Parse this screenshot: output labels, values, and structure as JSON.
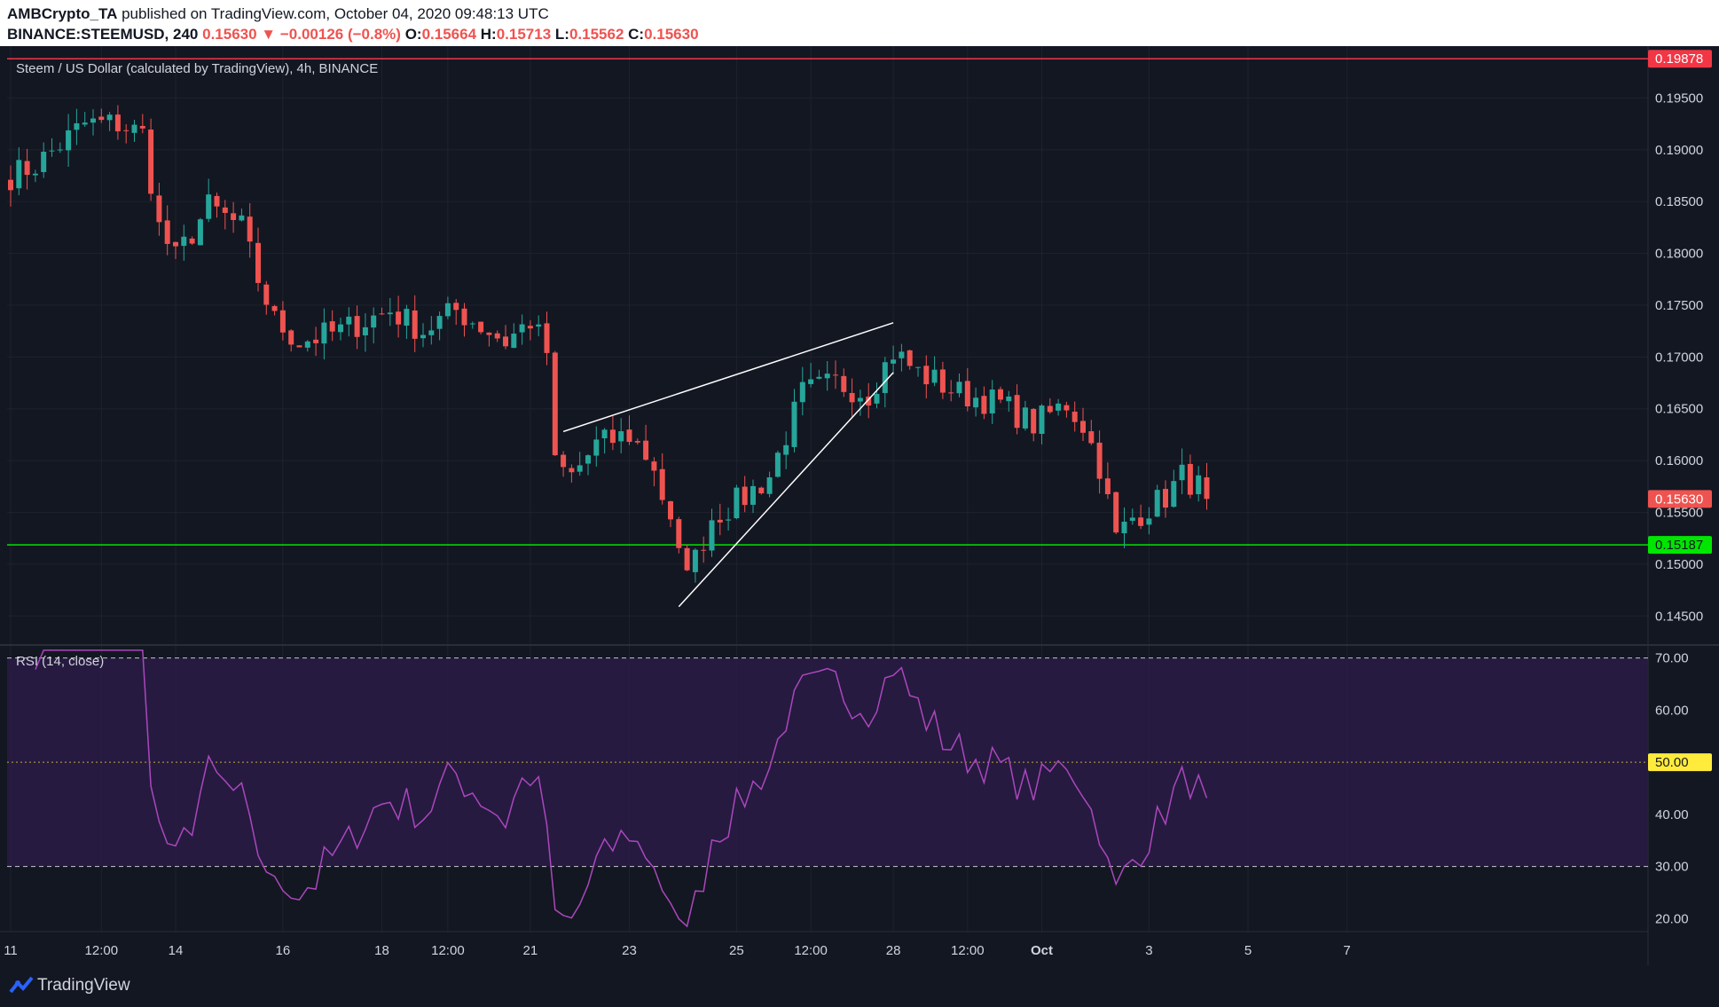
{
  "header": {
    "publisher": "AMBCrypto_TA",
    "published_text": "published on TradingView.com, October 04, 2020 09:48:13 UTC",
    "symbol": "BINANCE:STEEMUSD, 240",
    "last": "0.15630",
    "change": "▼ −0.00126 (−0.8%)",
    "o_label": "O:",
    "o_value": "0.15664",
    "h_label": "H:",
    "h_value": "0.15713",
    "l_label": "L:",
    "l_value": "0.15562",
    "c_label": "C:",
    "c_value": "0.15630"
  },
  "footer": {
    "brand": "TradingView"
  },
  "colors": {
    "up": "#26a69a",
    "down": "#ef5350",
    "bg": "#131722",
    "grid": "#1e222d",
    "rsi_line": "#ab47bc",
    "rsi_band": "#2a1b45",
    "resistance": "#f23645",
    "support": "#00e600",
    "mid": "#ffeb3b",
    "trendline": "#ffffff"
  },
  "chart_data": {
    "type": "candlestick",
    "title": "Steem / US Dollar (calculated by TradingView), 4h, BINANCE",
    "price_axis": {
      "ticks": [
        0.195,
        0.19,
        0.185,
        0.18,
        0.175,
        0.17,
        0.165,
        0.16,
        0.155,
        0.15,
        0.145
      ],
      "tick_labels": [
        "0.19500",
        "0.19000",
        "0.18500",
        "0.18000",
        "0.17500",
        "0.17000",
        "0.16500",
        "0.16000",
        "0.15500",
        "0.15000",
        "0.14500"
      ],
      "range": [
        0.1422,
        0.2
      ]
    },
    "x_axis": {
      "bar_count": 166,
      "ticks": [
        {
          "bar": 0,
          "label": "11"
        },
        {
          "bar": 11,
          "label": "12:00"
        },
        {
          "bar": 20,
          "label": "14"
        },
        {
          "bar": 33,
          "label": "16"
        },
        {
          "bar": 45,
          "label": "18"
        },
        {
          "bar": 53,
          "label": "12:00"
        },
        {
          "bar": 63,
          "label": "21"
        },
        {
          "bar": 75,
          "label": "23"
        },
        {
          "bar": 88,
          "label": "25"
        },
        {
          "bar": 97,
          "label": "12:00"
        },
        {
          "bar": 107,
          "label": "28"
        },
        {
          "bar": 116,
          "label": "12:00"
        },
        {
          "bar": 125,
          "label": "Oct"
        },
        {
          "bar": 138,
          "label": "3"
        },
        {
          "bar": 150,
          "label": "5"
        },
        {
          "bar": 162,
          "label": "7"
        }
      ]
    },
    "levels": [
      {
        "name": "resistance",
        "value": 0.19878,
        "label": "0.19878"
      },
      {
        "name": "support",
        "value": 0.15187,
        "label": "0.15187"
      },
      {
        "name": "last-price",
        "value": 0.1563,
        "label": "0.15630"
      }
    ],
    "trendlines": [
      {
        "name": "upper-wedge-line",
        "from": [
          67,
          0.1628
        ],
        "to": [
          107,
          0.1733
        ]
      },
      {
        "name": "lower-wedge-line",
        "from": [
          81,
          0.1459
        ],
        "to": [
          107,
          0.1685
        ]
      }
    ],
    "anchors": [
      [
        0,
        0.1875
      ],
      [
        3,
        0.1885
      ],
      [
        6,
        0.1905
      ],
      [
        9,
        0.1925
      ],
      [
        13,
        0.1925
      ],
      [
        16,
        0.1915
      ],
      [
        18,
        0.1825
      ],
      [
        20,
        0.1795
      ],
      [
        24,
        0.1845
      ],
      [
        28,
        0.1825
      ],
      [
        30,
        0.1775
      ],
      [
        32,
        0.1735
      ],
      [
        35,
        0.1715
      ],
      [
        40,
        0.1725
      ],
      [
        46,
        0.1745
      ],
      [
        50,
        0.1725
      ],
      [
        54,
        0.1745
      ],
      [
        60,
        0.1715
      ],
      [
        63,
        0.1735
      ],
      [
        65,
        0.1705
      ],
      [
        66,
        0.1595
      ],
      [
        68,
        0.1585
      ],
      [
        71,
        0.1615
      ],
      [
        75,
        0.1625
      ],
      [
        78,
        0.1595
      ],
      [
        81,
        0.1505
      ],
      [
        83,
        0.1505
      ],
      [
        85,
        0.1545
      ],
      [
        89,
        0.1565
      ],
      [
        92,
        0.1585
      ],
      [
        94,
        0.1625
      ],
      [
        96,
        0.1665
      ],
      [
        100,
        0.1675
      ],
      [
        104,
        0.1665
      ],
      [
        107,
        0.1705
      ],
      [
        110,
        0.1685
      ],
      [
        115,
        0.1665
      ],
      [
        120,
        0.1655
      ],
      [
        124,
        0.1635
      ],
      [
        128,
        0.1655
      ],
      [
        130,
        0.1635
      ],
      [
        132,
        0.1595
      ],
      [
        134,
        0.1525
      ],
      [
        136,
        0.1545
      ],
      [
        140,
        0.1565
      ],
      [
        142,
        0.1585
      ],
      [
        144,
        0.1575
      ],
      [
        145,
        0.1563
      ]
    ],
    "rsi": {
      "title": "RSI (14, close)",
      "length": 14,
      "range": [
        17.5,
        72.5
      ],
      "ticks": [
        70,
        60,
        50,
        40,
        30,
        20
      ],
      "tick_labels": [
        "70.00",
        "60.00",
        "50.00",
        "40.00",
        "30.00",
        "20.00"
      ],
      "overbought": 70,
      "oversold": 30,
      "mid": 50,
      "mid_label": "50.00"
    }
  }
}
